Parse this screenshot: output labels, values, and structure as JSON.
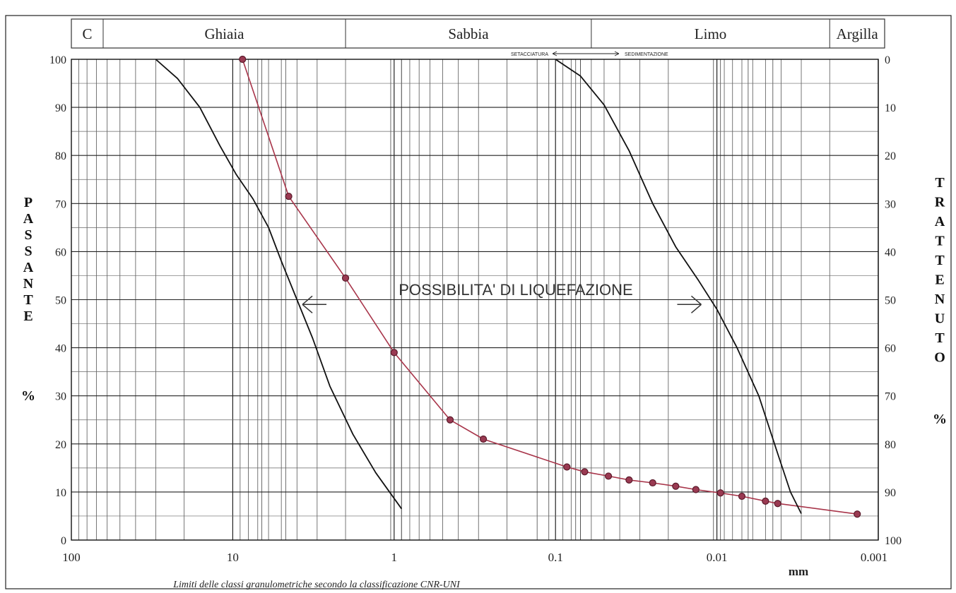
{
  "chart_data": {
    "type": "line",
    "title": "",
    "header_bands": [
      {
        "label": "C"
      },
      {
        "label": "Ghiaia"
      },
      {
        "label": "Sabbia"
      },
      {
        "label": "Limo"
      },
      {
        "label": "Argilla"
      }
    ],
    "band_boundaries_mm": [
      71,
      2,
      0.06,
      0.002
    ],
    "method_labels": {
      "left": "SETACCIATURA",
      "right": "SEDIMENTAZIONE"
    },
    "x_scale": "log",
    "x_reversed": true,
    "xlim": [
      100,
      0.001
    ],
    "xticks": [
      {
        "value": 100,
        "label": "100"
      },
      {
        "value": 10,
        "label": "10"
      },
      {
        "value": 1,
        "label": "1"
      },
      {
        "value": 0.1,
        "label": "0.1"
      },
      {
        "value": 0.01,
        "label": "0.01"
      },
      {
        "value": 0.001,
        "label": "0.001"
      }
    ],
    "xlabel": "mm",
    "ylim": [
      0,
      100
    ],
    "yticks_left": [
      "0",
      "10",
      "20",
      "30",
      "40",
      "50",
      "60",
      "70",
      "80",
      "90",
      "100"
    ],
    "yticks_right": [
      "100",
      "90",
      "80",
      "70",
      "60",
      "50",
      "40",
      "30",
      "20",
      "10",
      "0"
    ],
    "ylabel_left": {
      "word": "PASSANTE",
      "unit": "%"
    },
    "ylabel_right": {
      "word": "TRATTENUTO",
      "unit": "%"
    },
    "annotation": "POSSIBILITA' DI LIQUEFAZIONE",
    "caption": "Limiti delle classi granulometriche secondo la classificazione CNR-UNI",
    "grid": true,
    "series": [
      {
        "color": "#a8354a",
        "markers": true,
        "x": [
          8.7,
          4.5,
          2.0,
          1.0,
          0.45,
          0.28,
          0.085,
          0.066,
          0.047,
          0.035,
          0.025,
          0.018,
          0.0135,
          0.0095,
          0.007,
          0.005,
          0.0042,
          0.00135
        ],
        "y": [
          100,
          71.5,
          54.5,
          39,
          25,
          21,
          15.2,
          14.2,
          13.3,
          12.5,
          11.9,
          11.2,
          10.5,
          9.8,
          9.1,
          8.1,
          7.6,
          5.4
        ]
      },
      {
        "color": "#111111",
        "markers": false,
        "x": [
          30,
          22,
          16,
          12,
          9.5,
          7.5,
          6,
          5,
          4,
          3.2,
          2.5,
          1.8,
          1.3,
          0.9
        ],
        "y": [
          100,
          96,
          90,
          82,
          76,
          71,
          65,
          58,
          50,
          42,
          32,
          22,
          14,
          6.5
        ]
      },
      {
        "color": "#111111",
        "markers": false,
        "x": [
          0.1,
          0.07,
          0.05,
          0.035,
          0.025,
          0.018,
          0.013,
          0.01,
          0.0075,
          0.0055,
          0.0042,
          0.0035,
          0.003
        ],
        "y": [
          100,
          96.5,
          90.5,
          81,
          70,
          61,
          54,
          48,
          40,
          30,
          18,
          10,
          5.5
        ]
      }
    ],
    "annotation_arrows": [
      {
        "x": 3.7,
        "y": 49,
        "direction": "left"
      },
      {
        "x": 0.0125,
        "y": 49,
        "direction": "right"
      }
    ]
  }
}
